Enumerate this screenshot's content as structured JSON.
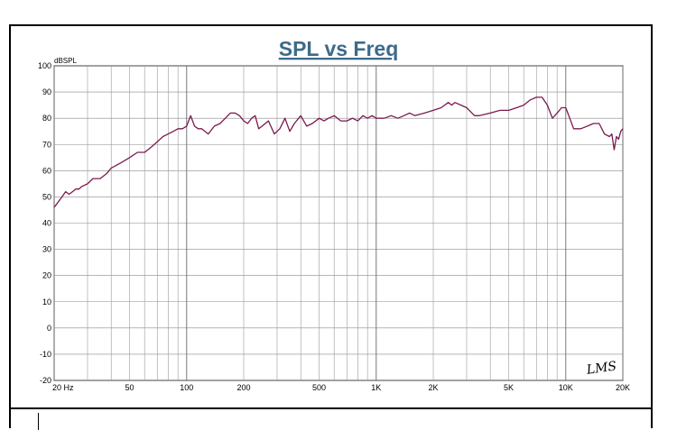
{
  "chart_data": {
    "type": "line",
    "title": "SPL vs Freq",
    "ylabel": "dBSPL",
    "xlabel": "",
    "x_scale": "log",
    "xlim": [
      20,
      20000
    ],
    "ylim": [
      -20,
      100
    ],
    "grid": true,
    "x_tick_labels": [
      "20 Hz",
      "50",
      "100",
      "200",
      "500",
      "1K",
      "2K",
      "5K",
      "10K",
      "20K"
    ],
    "x_tick_values": [
      20,
      50,
      100,
      200,
      500,
      1000,
      2000,
      5000,
      10000,
      20000
    ],
    "y_ticks": [
      -20,
      -10,
      0,
      10,
      20,
      30,
      40,
      50,
      60,
      70,
      80,
      90,
      100
    ],
    "series": [
      {
        "color": "#7b1a4e",
        "x": [
          20,
          21,
          22,
          23,
          24,
          25,
          26,
          27,
          28,
          30,
          32,
          35,
          38,
          40,
          45,
          50,
          55,
          60,
          65,
          70,
          75,
          80,
          85,
          90,
          95,
          100,
          105,
          110,
          115,
          120,
          130,
          140,
          150,
          160,
          170,
          180,
          190,
          200,
          210,
          220,
          230,
          240,
          250,
          270,
          290,
          310,
          330,
          350,
          370,
          400,
          430,
          460,
          500,
          530,
          560,
          600,
          650,
          700,
          750,
          800,
          850,
          900,
          950,
          1000,
          1100,
          1200,
          1300,
          1400,
          1500,
          1600,
          1800,
          2000,
          2200,
          2400,
          2500,
          2600,
          2800,
          3000,
          3300,
          3500,
          4000,
          4500,
          5000,
          5500,
          6000,
          6500,
          7000,
          7500,
          8000,
          8500,
          9000,
          9500,
          10000,
          10500,
          11000,
          12000,
          13000,
          14000,
          15000,
          16000,
          17000,
          17500,
          18000,
          18500,
          19000,
          19500,
          20000
        ],
        "y": [
          46,
          48,
          50,
          52,
          51,
          52,
          53,
          53,
          54,
          55,
          57,
          57,
          59,
          61,
          63,
          65,
          67,
          67,
          69,
          71,
          73,
          74,
          75,
          76,
          76,
          77,
          81,
          77,
          76,
          76,
          74,
          77,
          78,
          80,
          82,
          82,
          81,
          79,
          78,
          80,
          81,
          76,
          77,
          79,
          74,
          76,
          80,
          75,
          78,
          81,
          77,
          78,
          80,
          79,
          80,
          81,
          79,
          79,
          80,
          79,
          81,
          80,
          81,
          80,
          80,
          81,
          80,
          81,
          82,
          81,
          82,
          83,
          84,
          86,
          85,
          86,
          85,
          84,
          81,
          81,
          82,
          83,
          83,
          84,
          85,
          87,
          88,
          88,
          85,
          80,
          82,
          84,
          84,
          80,
          76,
          76,
          77,
          78,
          78,
          74,
          73,
          74,
          68,
          73,
          72,
          75,
          76
        ]
      }
    ]
  },
  "logo": "LMS"
}
